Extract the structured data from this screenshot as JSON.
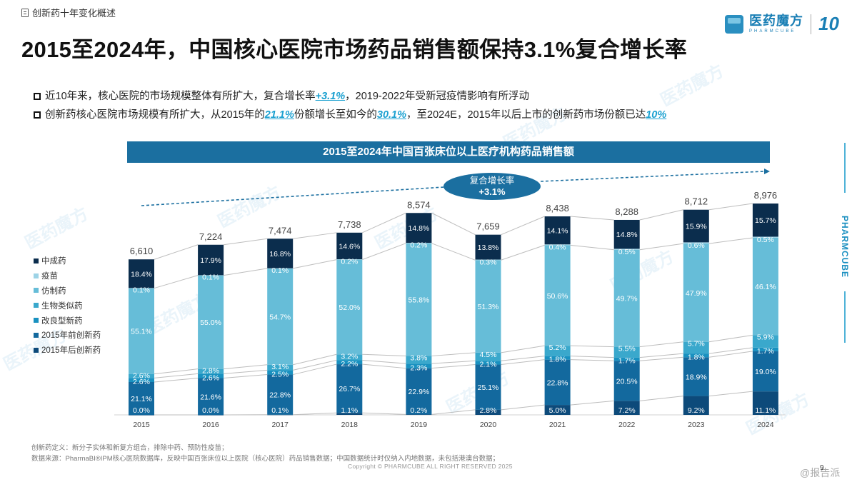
{
  "breadcrumb": "创新药十年变化概述",
  "page_title": "2015至2024年，中国核心医院市场药品销售额保持3.1%复合增长率",
  "logo": {
    "brand_cn": "医药魔方",
    "brand_en": "PHARMCUBE",
    "anniversary": "10"
  },
  "bullets": [
    {
      "parts": [
        "近10年来，核心医院的市场规模整体有所扩大，复合增长率",
        "+3.1%",
        "，2019-2022年受新冠疫情影响有所浮动"
      ]
    },
    {
      "parts": [
        "创新药核心医院市场规模有所扩大，从2015年的",
        "21.1%",
        "份额增长至如今的",
        "30.1%",
        "，至2024E，2015年以后上市的创新药市场份额已达",
        "10%"
      ]
    }
  ],
  "cagr_bubble": {
    "label": "复合增长率",
    "value": "+3.1%"
  },
  "side_brand": "PHARMCUBE",
  "footnotes": [
    "创新药定义：新分子实体和新复方组合，排除中药、预防性疫苗；",
    "数据来源：PharmaBI®IPM核心医院数据库，反映中国百张床位以上医院（核心医院）药品销售数据；中国数据统计时仅纳入内地数据，未包括港澳台数据；"
  ],
  "copyright": "Copyright © PHARMCUBE ALL RIGHT RESERVED 2025",
  "page_number": "9",
  "source_tag": "@报告派",
  "watermark": "医药魔方",
  "chart_data": {
    "type": "bar",
    "stacked": true,
    "title": "2015至2024年中国百张床位以上医疗机构药品销售额",
    "categories": [
      "2015",
      "2016",
      "2017",
      "2018",
      "2019",
      "2020",
      "2021",
      "2022",
      "2023",
      "2024"
    ],
    "totals": [
      6610,
      7224,
      7474,
      7738,
      8574,
      7659,
      8438,
      8288,
      8712,
      8976
    ],
    "totals_labels": [
      "6,610",
      "7,224",
      "7,474",
      "7,738",
      "8,574",
      "7,659",
      "8,438",
      "8,288",
      "8,712",
      "8,976"
    ],
    "series": [
      {
        "name": "2015年后创新药",
        "color": "#0d4a7a",
        "values": [
          0.0,
          0.0,
          0.1,
          1.1,
          0.2,
          2.8,
          5.0,
          7.2,
          9.2,
          11.1
        ]
      },
      {
        "name": "2015年前创新药",
        "color": "#13699e",
        "values": [
          21.1,
          21.6,
          22.8,
          26.7,
          22.9,
          25.1,
          22.8,
          20.5,
          18.9,
          19.0
        ]
      },
      {
        "name": "改良型新药",
        "color": "#1991c0",
        "values": [
          2.6,
          2.6,
          2.5,
          2.2,
          2.3,
          2.1,
          1.8,
          1.7,
          1.8,
          1.7
        ]
      },
      {
        "name": "生物类似药",
        "color": "#3aa8cc",
        "values": [
          2.6,
          2.8,
          3.1,
          3.2,
          3.8,
          4.5,
          5.2,
          5.5,
          5.7,
          5.9
        ]
      },
      {
        "name": "仿制药",
        "color": "#66bdd8",
        "values": [
          55.1,
          55.0,
          54.7,
          52.0,
          55.8,
          51.3,
          50.6,
          49.7,
          47.9,
          46.1
        ]
      },
      {
        "name": "疫苗",
        "color": "#9dd3e6",
        "values": [
          0.1,
          0.1,
          0.1,
          0.2,
          0.2,
          0.3,
          0.4,
          0.5,
          0.6,
          0.5
        ]
      },
      {
        "name": "中成药",
        "color": "#0b2d4d",
        "values": [
          18.4,
          17.9,
          16.8,
          14.6,
          14.8,
          13.8,
          14.1,
          14.8,
          15.9,
          15.7
        ]
      }
    ],
    "legend_order": [
      "中成药",
      "疫苗",
      "仿制药",
      "生物类似药",
      "改良型新药",
      "2015年前创新药",
      "2015年后创新药"
    ],
    "legend_position": "left",
    "unit": "%",
    "ylim": [
      0,
      9500
    ],
    "grid": false
  }
}
